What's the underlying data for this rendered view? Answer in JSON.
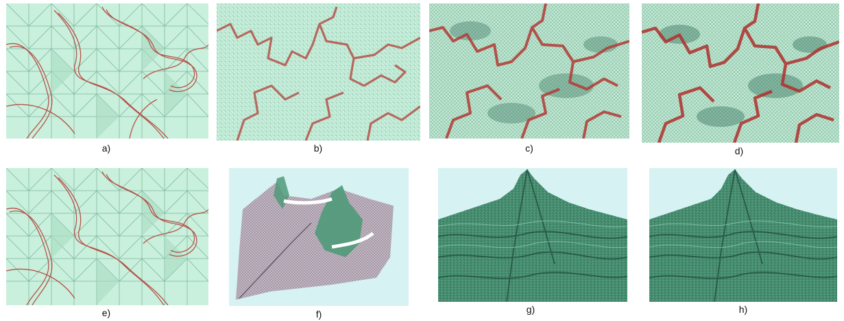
{
  "figure": {
    "captions": [
      "a)",
      "b)",
      "c)",
      "d)",
      "e)",
      "f)",
      "g)",
      "h)"
    ]
  },
  "colors": {
    "mint": "#c9f0dc",
    "mint_dark": "#a9dcc3",
    "grid": "#5fa089",
    "contour": "#b5524a",
    "mesh_dark": "#2f6b55",
    "terrain": "#4f9a7a",
    "terrain_shadow": "#1f4a3b",
    "sky": "#d6f2f2",
    "purple_mesh": "#8c7f93"
  }
}
